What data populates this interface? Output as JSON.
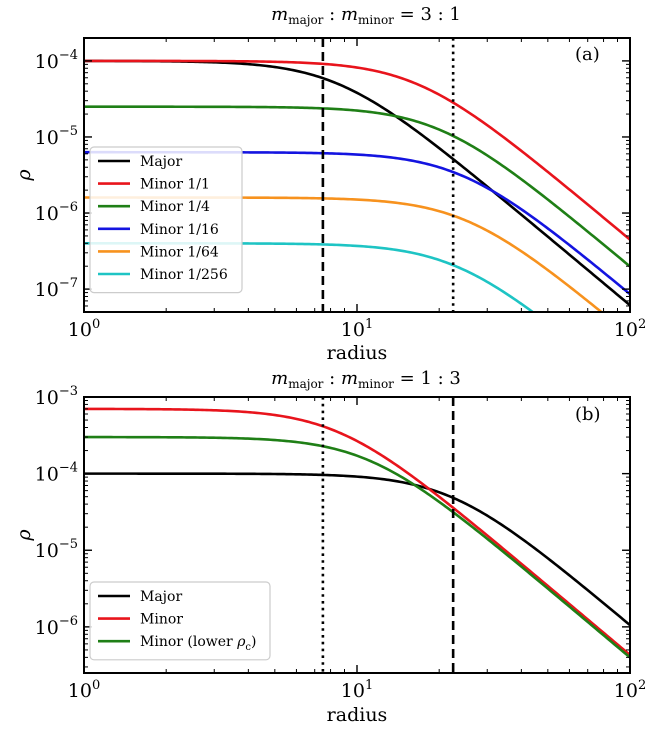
{
  "chart_data": [
    {
      "type": "line",
      "title": "m_major : m_minor = 3 : 1",
      "panel_label": "(a)",
      "xlabel": "radius",
      "ylabel": "ρ",
      "xscale": "log",
      "yscale": "log",
      "xlim": [
        1,
        100
      ],
      "ylim": [
        5e-08,
        0.0002
      ],
      "x_ticks": [
        {
          "base": "10",
          "exp": "0",
          "value": 1
        },
        {
          "base": "10",
          "exp": "1",
          "value": 10
        },
        {
          "base": "10",
          "exp": "2",
          "value": 100
        }
      ],
      "y_ticks": [
        {
          "base": "10",
          "exp": "−7",
          "value": 1e-07
        },
        {
          "base": "10",
          "exp": "−6",
          "value": 1e-06
        },
        {
          "base": "10",
          "exp": "−5",
          "value": 1e-05
        },
        {
          "base": "10",
          "exp": "−4",
          "value": 0.0001
        }
      ],
      "vlines": [
        {
          "x": 7.5,
          "style": "dashed"
        },
        {
          "x": 22.5,
          "style": "dotted"
        }
      ],
      "legend_position": "lower-left",
      "series": [
        {
          "name": "Major",
          "color": "#000000",
          "rho_c": 0.0001,
          "r_c": 8.5,
          "slope": 3.0
        },
        {
          "name": "Minor 1/1",
          "color": "#e8141c",
          "rho_c": 0.0001,
          "r_c": 16.5,
          "slope": 3.0
        },
        {
          "name": "Minor 1/4",
          "color": "#1f7f16",
          "rho_c": 2.5e-05,
          "r_c": 20,
          "slope": 3.0
        },
        {
          "name": "Minor 1/16",
          "color": "#1414e0",
          "rho_c": 6.3e-06,
          "r_c": 24,
          "slope": 3.0
        },
        {
          "name": "Minor 1/64",
          "color": "#f7921e",
          "rho_c": 1.6e-06,
          "r_c": 25,
          "slope": 3.0
        },
        {
          "name": "Minor 1/256",
          "color": "#1ec4c4",
          "rho_c": 4e-07,
          "r_c": 23,
          "slope": 3.0
        }
      ]
    },
    {
      "type": "line",
      "title": "m_major : m_minor = 1 : 3",
      "panel_label": "(b)",
      "xlabel": "radius",
      "ylabel": "ρ",
      "xscale": "log",
      "yscale": "log",
      "xlim": [
        1,
        100
      ],
      "ylim": [
        2.5e-07,
        0.001
      ],
      "x_ticks": [
        {
          "base": "10",
          "exp": "0",
          "value": 1
        },
        {
          "base": "10",
          "exp": "1",
          "value": 10
        },
        {
          "base": "10",
          "exp": "2",
          "value": 100
        }
      ],
      "y_ticks": [
        {
          "base": "10",
          "exp": "−6",
          "value": 1e-06
        },
        {
          "base": "10",
          "exp": "−5",
          "value": 1e-05
        },
        {
          "base": "10",
          "exp": "−4",
          "value": 0.0001
        },
        {
          "base": "10",
          "exp": "−3",
          "value": 0.001
        }
      ],
      "vlines": [
        {
          "x": 7.5,
          "style": "dotted"
        },
        {
          "x": 22.5,
          "style": "dashed"
        }
      ],
      "legend_position": "lower-left",
      "series": [
        {
          "name": "Major",
          "color": "#000000",
          "rho_c": 0.0001,
          "r_c": 22,
          "slope": 3.0
        },
        {
          "name": "Minor",
          "color": "#e8141c",
          "rho_c": 0.0007,
          "r_c": 8.5,
          "slope": 3.0
        },
        {
          "name": "Minor (lower ρc)",
          "color": "#1f7f16",
          "rho_c": 0.0003,
          "r_c": 11,
          "slope": 3.0
        }
      ]
    }
  ]
}
